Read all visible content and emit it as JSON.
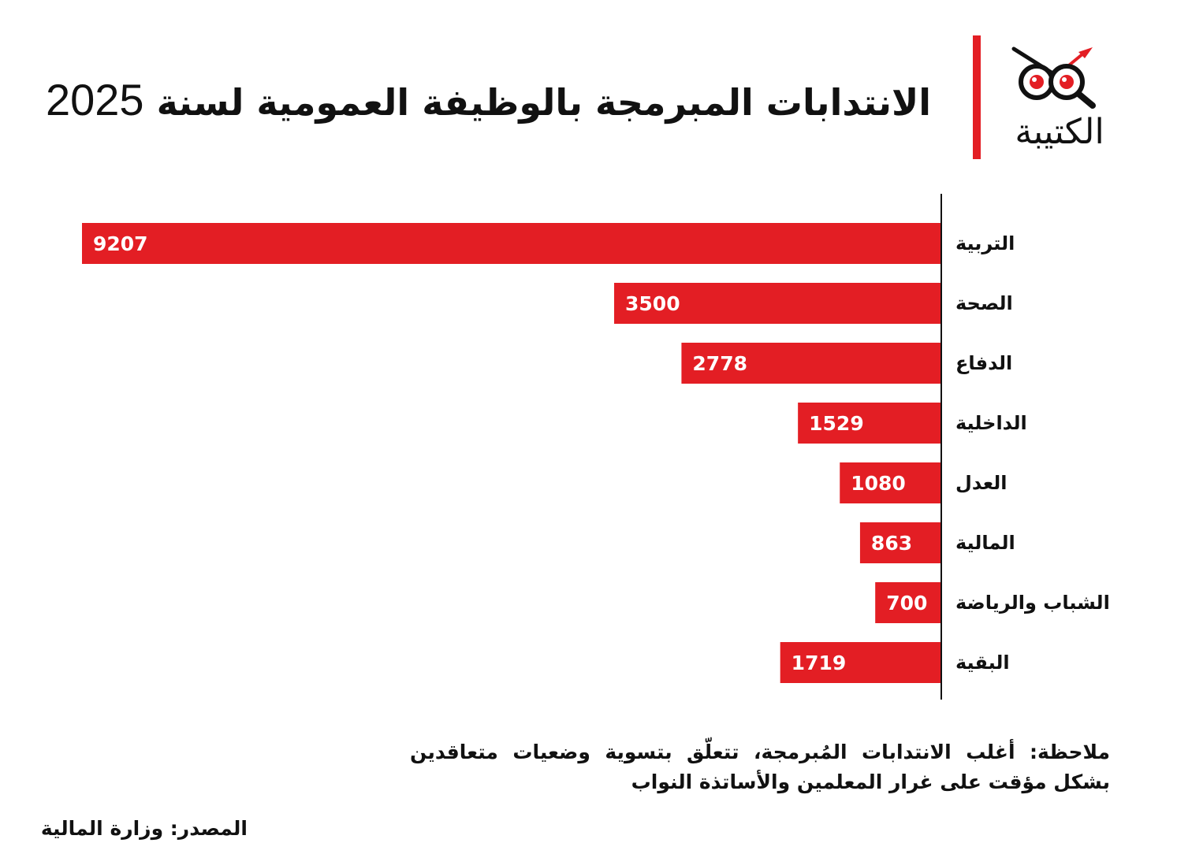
{
  "title": {
    "text": "الانتدابات المبرمجة بالوظيفة العمومية لسنة",
    "year": "2025"
  },
  "logo": {
    "text": "الكتيبة",
    "accent_color": "#e31e24",
    "icon": "eyes-magnifier-icon"
  },
  "chart_data": {
    "type": "bar",
    "orientation": "horizontal",
    "categories": [
      "التربية",
      "الصحة",
      "الدفاع",
      "الداخلية",
      "العدل",
      "المالية",
      "الشباب والرياضة",
      "البقية"
    ],
    "values": [
      9207,
      3500,
      2778,
      1529,
      1080,
      863,
      700,
      1719
    ],
    "data_labels": [
      "9207",
      "3500",
      "2778",
      "1529",
      "1080",
      "863",
      "700",
      "1719"
    ],
    "bar_color": "#e31e24",
    "title": "",
    "xlabel": "",
    "ylabel": "",
    "xlim": [
      0,
      10300
    ],
    "grid": false,
    "legend": "none"
  },
  "note": "ملاحظة: أغلب الانتدابات المُبرمجة، تتعلّق بتسوية وضعيات متعاقدين بشكل مؤقت على غرار المعلمين والأساتذة النواب",
  "source": "المصدر: وزارة المالية"
}
